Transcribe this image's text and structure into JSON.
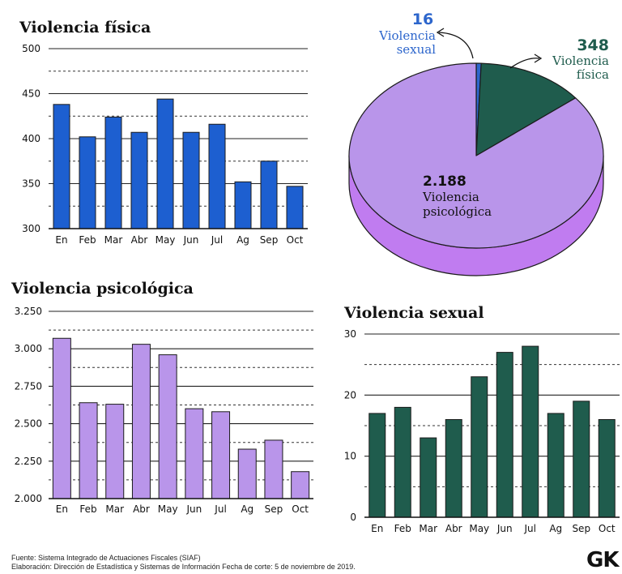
{
  "chart_data": [
    {
      "type": "bar",
      "title": "Violencia física",
      "categories": [
        "En",
        "Feb",
        "Mar",
        "Abr",
        "May",
        "Jun",
        "Jul",
        "Ag",
        "Sep",
        "Oct"
      ],
      "values": [
        438,
        402,
        424,
        407,
        444,
        407,
        416,
        352,
        375,
        347
      ],
      "ylim": [
        300,
        500
      ],
      "yticks": [
        "300",
        "350",
        "400",
        "450",
        "500"
      ],
      "color": "#1d5fd0"
    },
    {
      "type": "pie",
      "labels": [
        "Violencia psicológica",
        "Violencia física",
        "Violencia sexual"
      ],
      "label_lines": [
        [
          "Violencia",
          "psicológica"
        ],
        [
          "Violencia",
          "física"
        ],
        [
          "Violencia",
          "sexual"
        ]
      ],
      "values": [
        2188,
        348,
        16
      ],
      "value_labels": [
        "2.188",
        "348",
        "16"
      ],
      "colors": [
        "#b995ea",
        "#1f5c4d",
        "#2d66cc"
      ],
      "side_color": "#c07cf0"
    },
    {
      "type": "bar",
      "title": "Violencia psicológica",
      "categories": [
        "En",
        "Feb",
        "Mar",
        "Abr",
        "May",
        "Jun",
        "Jul",
        "Ag",
        "Sep",
        "Oct"
      ],
      "values": [
        3070,
        2640,
        2630,
        3030,
        2960,
        2600,
        2580,
        2330,
        2390,
        2180
      ],
      "ylim": [
        2000,
        3250
      ],
      "yticks": [
        "2.000",
        "2.250",
        "2.500",
        "2.750",
        "3.000",
        "3.250"
      ],
      "color": "#b995ea"
    },
    {
      "type": "bar",
      "title": "Violencia sexual",
      "categories": [
        "En",
        "Feb",
        "Mar",
        "Abr",
        "May",
        "Jun",
        "Jul",
        "Ag",
        "Sep",
        "Oct"
      ],
      "values": [
        17,
        18,
        13,
        16,
        23,
        27,
        28,
        17,
        19,
        16
      ],
      "ylim": [
        0,
        30
      ],
      "yticks": [
        "0",
        "10",
        "20",
        "30"
      ],
      "color": "#1f5c4d"
    }
  ],
  "footer": {
    "source": "Fuente: Sistema Integrado de Actuaciones Fiscales (SIAF)",
    "credit": "Elaboración: Dirección de Estadística y Sistemas de Información  Fecha de corte: 5 de noviembre de 2019."
  },
  "logo": "GK"
}
